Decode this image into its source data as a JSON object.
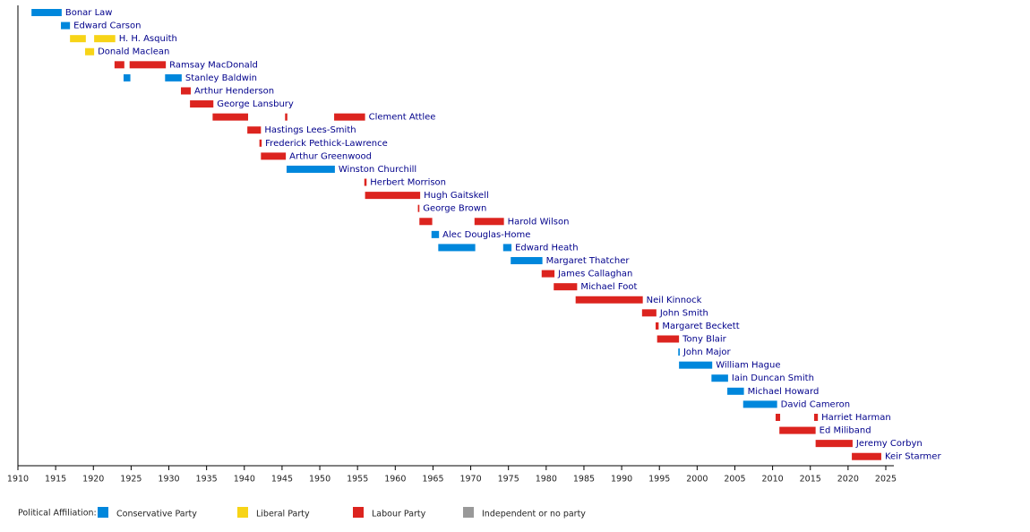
{
  "chart_data": {
    "type": "timeline",
    "legend_title": "Political Affiliation:",
    "parties": [
      {
        "name": "Conservative Party",
        "color": "#0087dc"
      },
      {
        "name": "Liberal Party",
        "color": "#f7d417"
      },
      {
        "name": "Labour Party",
        "color": "#dc241f"
      },
      {
        "name": "Independent or no party",
        "color": "#999999"
      }
    ],
    "rows": [
      {
        "name": "Bonar Law",
        "party": 0,
        "spans": [
          [
            1911.8,
            1915.8
          ]
        ]
      },
      {
        "name": "Edward Carson",
        "party": 0,
        "spans": [
          [
            1915.7,
            1916.9
          ]
        ]
      },
      {
        "name": "H. H. Asquith",
        "party": 1,
        "spans": [
          [
            1916.9,
            1919.0
          ],
          [
            1920.1,
            1922.9
          ]
        ]
      },
      {
        "name": "Donald Maclean",
        "party": 1,
        "spans": [
          [
            1918.9,
            1920.1
          ]
        ]
      },
      {
        "name": "Ramsay MacDonald",
        "party": 2,
        "spans": [
          [
            1922.8,
            1924.1
          ],
          [
            1924.8,
            1929.6
          ]
        ]
      },
      {
        "name": "Stanley Baldwin",
        "party": 0,
        "spans": [
          [
            1924.0,
            1924.9
          ],
          [
            1929.5,
            1931.7
          ]
        ]
      },
      {
        "name": "Arthur Henderson",
        "party": 2,
        "spans": [
          [
            1931.6,
            1932.9
          ]
        ]
      },
      {
        "name": "George Lansbury",
        "party": 2,
        "spans": [
          [
            1932.8,
            1935.9
          ]
        ]
      },
      {
        "name": "Clement Attlee",
        "party": 2,
        "spans": [
          [
            1935.8,
            1940.5
          ],
          [
            1945.4,
            1945.7
          ],
          [
            1951.9,
            1956.0
          ]
        ]
      },
      {
        "name": "Hastings Lees-Smith",
        "party": 2,
        "spans": [
          [
            1940.4,
            1942.2
          ]
        ]
      },
      {
        "name": "Frederick Pethick-Lawrence",
        "party": 2,
        "spans": [
          [
            1942.0,
            1942.3
          ]
        ]
      },
      {
        "name": "Arthur Greenwood",
        "party": 2,
        "spans": [
          [
            1942.2,
            1945.5
          ]
        ]
      },
      {
        "name": "Winston Churchill",
        "party": 0,
        "spans": [
          [
            1945.6,
            1952.0
          ]
        ]
      },
      {
        "name": "Herbert Morrison",
        "party": 2,
        "spans": [
          [
            1955.9,
            1956.2
          ]
        ]
      },
      {
        "name": "Hugh Gaitskell",
        "party": 2,
        "spans": [
          [
            1956.0,
            1963.3
          ]
        ]
      },
      {
        "name": "George Brown",
        "party": 2,
        "spans": [
          [
            1963.0,
            1963.2
          ]
        ]
      },
      {
        "name": "Harold Wilson",
        "party": 2,
        "spans": [
          [
            1963.2,
            1964.9
          ],
          [
            1970.5,
            1974.4
          ]
        ]
      },
      {
        "name": "Alec Douglas-Home",
        "party": 0,
        "spans": [
          [
            1964.8,
            1965.8
          ]
        ]
      },
      {
        "name": "Edward Heath",
        "party": 0,
        "spans": [
          [
            1965.7,
            1970.6
          ],
          [
            1974.3,
            1975.4
          ]
        ]
      },
      {
        "name": "Margaret Thatcher",
        "party": 0,
        "spans": [
          [
            1975.3,
            1979.5
          ]
        ]
      },
      {
        "name": "James Callaghan",
        "party": 2,
        "spans": [
          [
            1979.4,
            1981.1
          ]
        ]
      },
      {
        "name": "Michael Foot",
        "party": 2,
        "spans": [
          [
            1981.0,
            1984.1
          ]
        ]
      },
      {
        "name": "Neil Kinnock",
        "party": 2,
        "spans": [
          [
            1983.9,
            1992.8
          ]
        ]
      },
      {
        "name": "John Smith",
        "party": 2,
        "spans": [
          [
            1992.7,
            1994.6
          ]
        ]
      },
      {
        "name": "Margaret Beckett",
        "party": 2,
        "spans": [
          [
            1994.5,
            1994.9
          ]
        ]
      },
      {
        "name": "Tony Blair",
        "party": 2,
        "spans": [
          [
            1994.7,
            1997.6
          ]
        ]
      },
      {
        "name": "John Major",
        "party": 0,
        "spans": [
          [
            1997.5,
            1997.7
          ]
        ]
      },
      {
        "name": "William Hague",
        "party": 0,
        "spans": [
          [
            1997.6,
            2002.0
          ]
        ]
      },
      {
        "name": "Iain Duncan Smith",
        "party": 0,
        "spans": [
          [
            2001.9,
            2004.1
          ]
        ]
      },
      {
        "name": "Michael Howard",
        "party": 0,
        "spans": [
          [
            2004.0,
            2006.2
          ]
        ]
      },
      {
        "name": "David Cameron",
        "party": 0,
        "spans": [
          [
            2006.1,
            2010.6
          ]
        ]
      },
      {
        "name": "Harriet Harman",
        "party": 2,
        "spans": [
          [
            2010.4,
            2011.0
          ],
          [
            2015.5,
            2016.0
          ]
        ]
      },
      {
        "name": "Ed Miliband",
        "party": 2,
        "spans": [
          [
            2010.9,
            2015.7
          ]
        ]
      },
      {
        "name": "Jeremy Corbyn",
        "party": 2,
        "spans": [
          [
            2015.7,
            2020.6
          ]
        ]
      },
      {
        "name": "Keir Starmer",
        "party": 2,
        "spans": [
          [
            2020.5,
            2024.4
          ]
        ]
      }
    ],
    "xlim": [
      1910,
      2025
    ],
    "xticks": [
      1910,
      1915,
      1920,
      1925,
      1930,
      1935,
      1940,
      1945,
      1950,
      1955,
      1960,
      1965,
      1970,
      1975,
      1980,
      1985,
      1990,
      1995,
      2000,
      2005,
      2010,
      2015,
      2020,
      2025
    ]
  }
}
